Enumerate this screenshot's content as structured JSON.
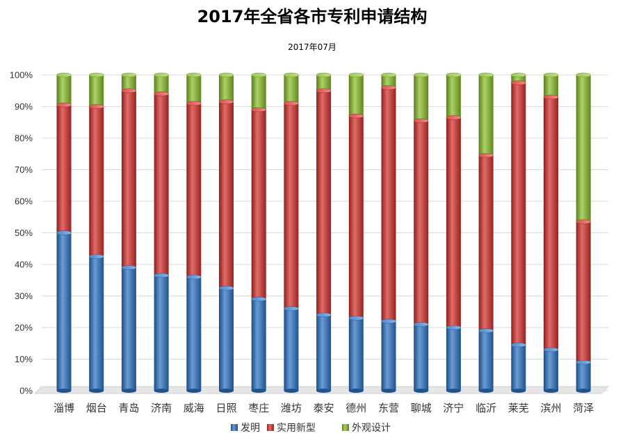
{
  "chart_data": {
    "type": "bar",
    "stacked": true,
    "percent": true,
    "title": "2017年全省各市专利申请结构",
    "subtitle": "2017年07月",
    "xlabel": "",
    "ylabel": "",
    "ylim": [
      0,
      100
    ],
    "yticks": [
      "0%",
      "10%",
      "20%",
      "30%",
      "40%",
      "50%",
      "60%",
      "70%",
      "80%",
      "90%",
      "100%"
    ],
    "grid": true,
    "legend_position": "bottom",
    "categories": [
      "淄博",
      "烟台",
      "青岛",
      "济南",
      "威海",
      "日照",
      "枣庄",
      "潍坊",
      "泰安",
      "德州",
      "东营",
      "聊城",
      "济宁",
      "临沂",
      "莱芜",
      "滨州",
      "菏泽"
    ],
    "series": [
      {
        "name": "发明",
        "color": "#2e75c6",
        "values": [
          50,
          42.5,
          39,
          36.5,
          36,
          32.5,
          29,
          26,
          24,
          23,
          22,
          21,
          20,
          19,
          14.5,
          13,
          9
        ]
      },
      {
        "name": "实用新型",
        "color": "#d7312d",
        "values": [
          40.5,
          47.5,
          56,
          57.5,
          55,
          59,
          60,
          65,
          71,
          64,
          74,
          64.5,
          66.5,
          55.5,
          83,
          80,
          44.5
        ]
      },
      {
        "name": "外观设计",
        "color": "#8cc02c",
        "values": [
          9.5,
          10,
          5,
          6,
          9,
          8.5,
          11,
          9,
          5,
          13,
          4,
          14.5,
          13.5,
          25.5,
          2.5,
          7,
          46.5
        ]
      }
    ]
  }
}
